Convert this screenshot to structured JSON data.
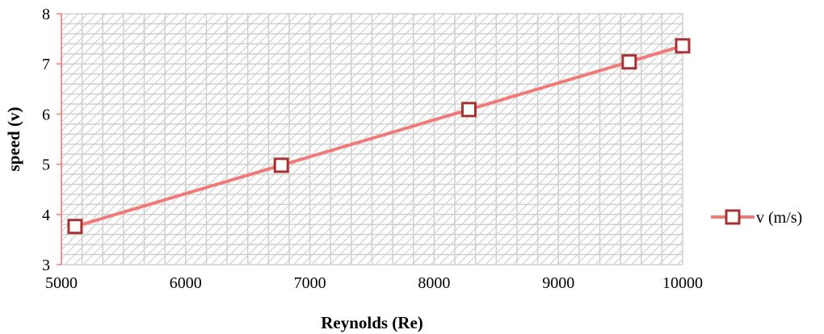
{
  "chart_data": {
    "type": "line",
    "title": "",
    "xlabel": "Reynolds (Re)",
    "ylabel": "speed (v)",
    "xlim": [
      5000,
      10000
    ],
    "ylim": [
      3,
      8
    ],
    "x_ticks": [
      5000,
      6000,
      7000,
      8000,
      9000,
      10000
    ],
    "y_ticks": [
      3,
      4,
      5,
      6,
      7,
      8
    ],
    "grid": true,
    "legend_position": "right",
    "series": [
      {
        "name": "v (m/s)",
        "color": "#f07a78",
        "marker": "square",
        "marker_edge_color": "#a83232",
        "x": [
          5110,
          6770,
          8280,
          9570,
          10000
        ],
        "y": [
          3.76,
          4.98,
          6.09,
          7.04,
          7.36
        ]
      }
    ]
  }
}
